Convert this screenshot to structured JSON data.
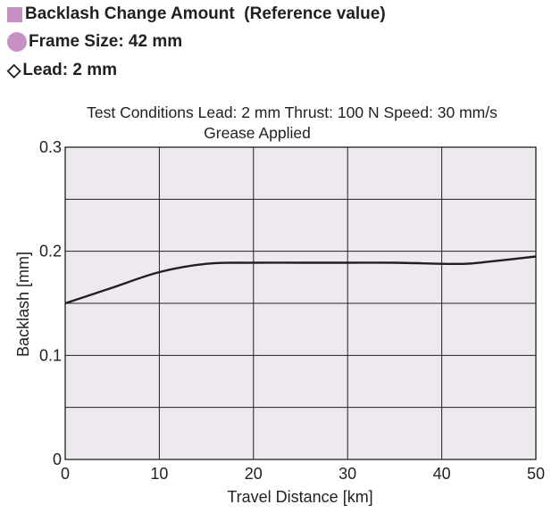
{
  "header": {
    "title": "Backlash Change Amount  (Reference value)",
    "frame_size": "Frame Size: 42 mm",
    "lead": "Lead: 2 mm",
    "diamond_glyph": "◇",
    "marker_color": "#c792c3"
  },
  "chart_data": {
    "type": "line",
    "conditions": "Test Conditions   Lead: 2 mm   Thrust: 100 N   Speed: 30 mm/s",
    "conditions_line2": "Grease Applied",
    "xlabel": "Travel Distance [km]",
    "ylabel": "Backlash [mm]",
    "xlim": [
      0,
      50
    ],
    "ylim": [
      0,
      0.3
    ],
    "x_ticks": [
      "0",
      "10",
      "20",
      "30",
      "40",
      "50"
    ],
    "y_ticks": [
      "0",
      "0.1",
      "0.2",
      "0.3"
    ],
    "grid": true,
    "plot_background": "#eee9ef",
    "line_color": "#231f20",
    "series": [
      {
        "x": [
          0,
          5,
          10,
          15,
          20,
          25,
          30,
          35,
          40,
          42.5,
          45,
          50
        ],
        "y": [
          0.15,
          0.165,
          0.18,
          0.188,
          0.189,
          0.189,
          0.189,
          0.189,
          0.188,
          0.188,
          0.19,
          0.195
        ]
      }
    ]
  }
}
